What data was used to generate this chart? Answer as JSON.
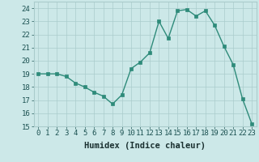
{
  "x": [
    0,
    1,
    2,
    3,
    4,
    5,
    6,
    7,
    8,
    9,
    10,
    11,
    12,
    13,
    14,
    15,
    16,
    17,
    18,
    19,
    20,
    21,
    22,
    23
  ],
  "y": [
    19,
    19,
    19,
    18.8,
    18.3,
    18,
    17.6,
    17.3,
    16.7,
    17.4,
    19.4,
    19.9,
    20.6,
    23.0,
    21.7,
    23.8,
    23.9,
    23.4,
    23.8,
    22.7,
    21.1,
    19.7,
    17.1,
    15.2
  ],
  "line_color": "#2e8b7a",
  "marker_color": "#2e8b7a",
  "bg_color": "#cce8e8",
  "grid_color": "#aacccc",
  "xlabel": "Humidex (Indice chaleur)",
  "xlim": [
    -0.5,
    23.5
  ],
  "ylim": [
    15,
    24.5
  ],
  "yticks": [
    15,
    16,
    17,
    18,
    19,
    20,
    21,
    22,
    23,
    24
  ],
  "xticks": [
    0,
    1,
    2,
    3,
    4,
    5,
    6,
    7,
    8,
    9,
    10,
    11,
    12,
    13,
    14,
    15,
    16,
    17,
    18,
    19,
    20,
    21,
    22,
    23
  ],
  "font_size": 6.5,
  "label_fontsize": 7.5,
  "tick_color": "#1a5050",
  "label_color": "#1a3030"
}
